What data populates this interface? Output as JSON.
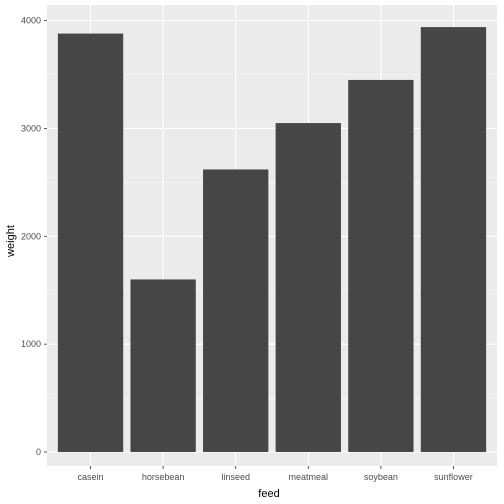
{
  "chart_data": {
    "type": "bar",
    "categories": [
      "casein",
      "horsebean",
      "linseed",
      "meatmeal",
      "soybean",
      "sunflower"
    ],
    "values": [
      3880,
      1600,
      2620,
      3050,
      3450,
      3940
    ],
    "xlabel": "feed",
    "ylabel": "weight",
    "ylim": [
      -130,
      4145
    ],
    "yticks": [
      0,
      1000,
      2000,
      3000,
      4000
    ],
    "grid": true,
    "colors": {
      "bar": "#464646",
      "panel": "#ebebeb",
      "grid_major": "#ffffff",
      "grid_minor": "#f5f5f5",
      "tick": "#333333"
    }
  }
}
